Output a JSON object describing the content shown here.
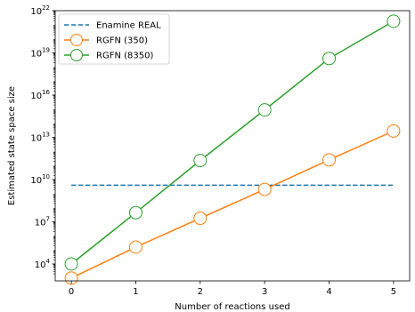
{
  "chart_data": {
    "type": "line",
    "title": "",
    "xlabel": "Number of reactions used",
    "ylabel": "Estimated state space size",
    "xlim": [
      -0.25,
      5.25
    ],
    "ylim_log10": [
      2.8,
      22
    ],
    "y_scale": "log",
    "x_ticks": [
      0,
      1,
      2,
      3,
      4,
      5
    ],
    "x_tick_labels": [
      "0",
      "1",
      "2",
      "3",
      "4",
      "5"
    ],
    "y_ticks_log10": [
      4,
      7,
      10,
      13,
      16,
      19,
      22
    ],
    "y_tick_base": "10",
    "y_tick_exponents": [
      "4",
      "7",
      "10",
      "13",
      "16",
      "19",
      "22"
    ],
    "grid": false,
    "legend_position": "upper-left",
    "series": [
      {
        "name": "Enamine REAL",
        "style": "dashed",
        "color": "#1f77b4",
        "x": [
          0,
          5
        ],
        "y_log10": [
          9.6,
          9.6
        ]
      },
      {
        "name": "RGFN (350)",
        "style": "solid-open-circle",
        "color": "#ff7f0e",
        "x": [
          0,
          1,
          2,
          3,
          4,
          5
        ],
        "y_log10": [
          3.0,
          5.2,
          7.25,
          9.3,
          11.4,
          13.45
        ]
      },
      {
        "name": "RGFN (8350)",
        "style": "solid-open-circle",
        "color": "#2ca02c",
        "x": [
          0,
          1,
          2,
          3,
          4,
          5
        ],
        "y_log10": [
          4.0,
          7.65,
          11.35,
          14.95,
          18.6,
          21.25
        ]
      }
    ]
  }
}
